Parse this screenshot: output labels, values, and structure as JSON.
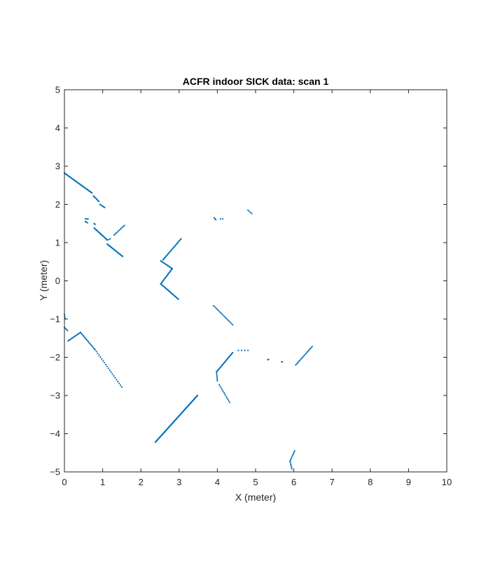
{
  "chart_data": {
    "type": "scatter",
    "title": "ACFR indoor SICK data: scan 1",
    "xlabel": "X (meter)",
    "ylabel": "Y (meter)",
    "xlim": [
      0,
      10
    ],
    "ylim": [
      -5,
      5
    ],
    "xticks": [
      0,
      1,
      2,
      3,
      4,
      5,
      6,
      7,
      8,
      9,
      10
    ],
    "yticks": [
      5,
      4,
      3,
      2,
      1,
      0,
      -1,
      -2,
      -3,
      -4,
      -5
    ],
    "xtick_labels": [
      "0",
      "1",
      "2",
      "3",
      "4",
      "5",
      "6",
      "7",
      "8",
      "9",
      "10"
    ],
    "ytick_labels": [
      "5",
      "4",
      "3",
      "2",
      "1",
      "0",
      "−1",
      "−2",
      "−3",
      "−4",
      "−5"
    ],
    "grid": false,
    "marker": "point",
    "series_color": "#0072bd",
    "segments": [
      {
        "from": [
          0.0,
          2.82
        ],
        "to": [
          0.72,
          2.3
        ],
        "step": 0.02
      },
      {
        "from": [
          0.76,
          2.22
        ],
        "to": [
          0.9,
          2.08
        ],
        "step": 0.03
      },
      {
        "from": [
          0.93,
          2.0
        ],
        "to": [
          1.05,
          1.92
        ],
        "step": 0.03
      },
      {
        "from": [
          0.55,
          1.62
        ],
        "to": [
          0.62,
          1.62
        ],
        "step": 0.035
      },
      {
        "from": [
          0.55,
          1.55
        ],
        "to": [
          0.6,
          1.52
        ],
        "step": 0.03
      },
      {
        "from": [
          0.78,
          1.5
        ],
        "to": [
          0.8,
          1.48
        ],
        "step": 0.02
      },
      {
        "from": [
          0.78,
          1.38
        ],
        "to": [
          1.12,
          1.07
        ],
        "step": 0.02
      },
      {
        "from": [
          1.12,
          1.07
        ],
        "to": [
          1.2,
          1.1
        ],
        "step": 0.04
      },
      {
        "from": [
          1.3,
          1.2
        ],
        "to": [
          1.57,
          1.45
        ],
        "step": 0.04
      },
      {
        "from": [
          1.12,
          0.96
        ],
        "to": [
          1.52,
          0.64
        ],
        "step": 0.02
      },
      {
        "from": [
          2.58,
          0.55
        ],
        "to": [
          3.05,
          1.1
        ],
        "step": 0.03
      },
      {
        "from": [
          2.52,
          0.52
        ],
        "to": [
          2.82,
          0.32
        ],
        "step": 0.025
      },
      {
        "from": [
          2.82,
          0.32
        ],
        "to": [
          2.52,
          -0.08
        ],
        "step": 0.025
      },
      {
        "from": [
          2.52,
          -0.08
        ],
        "to": [
          2.98,
          -0.48
        ],
        "step": 0.025
      },
      {
        "from": [
          3.92,
          1.65
        ],
        "to": [
          3.96,
          1.6
        ],
        "step": 0.04
      },
      {
        "from": [
          4.08,
          1.62
        ],
        "to": [
          4.14,
          1.62
        ],
        "step": 0.06
      },
      {
        "from": [
          4.8,
          1.85
        ],
        "to": [
          4.9,
          1.76
        ],
        "step": 0.04
      },
      {
        "from": [
          3.9,
          -0.65
        ],
        "to": [
          4.4,
          -1.15
        ],
        "step": 0.045
      },
      {
        "from": [
          0.0,
          -0.88
        ],
        "to": [
          0.02,
          -0.98
        ],
        "step": 0.05
      },
      {
        "from": [
          0.0,
          -1.22
        ],
        "to": [
          0.08,
          -1.3
        ],
        "step": 0.04
      },
      {
        "from": [
          0.1,
          -1.57
        ],
        "to": [
          0.42,
          -1.35
        ],
        "step": 0.03
      },
      {
        "from": [
          0.42,
          -1.35
        ],
        "to": [
          0.8,
          -1.8
        ],
        "step": 0.04
      },
      {
        "from": [
          0.8,
          -1.8
        ],
        "to": [
          1.5,
          -2.78
        ],
        "step": 0.06
      },
      {
        "from": [
          3.98,
          -2.38
        ],
        "to": [
          4.4,
          -1.88
        ],
        "step": 0.025
      },
      {
        "from": [
          3.98,
          -2.38
        ],
        "to": [
          4.0,
          -2.62
        ],
        "step": 0.04
      },
      {
        "from": [
          4.05,
          -2.72
        ],
        "to": [
          4.32,
          -3.18
        ],
        "step": 0.05
      },
      {
        "from": [
          4.55,
          -1.82
        ],
        "to": [
          4.8,
          -1.82
        ],
        "step": 0.08
      },
      {
        "from": [
          5.32,
          -2.06
        ],
        "to": [
          5.34,
          -2.06
        ],
        "step": 0.05
      },
      {
        "from": [
          5.68,
          -2.12
        ],
        "to": [
          5.7,
          -2.12
        ],
        "step": 0.05
      },
      {
        "from": [
          6.05,
          -2.2
        ],
        "to": [
          6.48,
          -1.72
        ],
        "step": 0.04
      },
      {
        "from": [
          2.38,
          -4.22
        ],
        "to": [
          3.48,
          -3.0
        ],
        "step": 0.015
      },
      {
        "from": [
          5.95,
          -4.92
        ],
        "to": [
          5.9,
          -4.72
        ],
        "step": 0.04
      },
      {
        "from": [
          5.9,
          -4.72
        ],
        "to": [
          6.02,
          -4.45
        ],
        "step": 0.04
      }
    ]
  }
}
